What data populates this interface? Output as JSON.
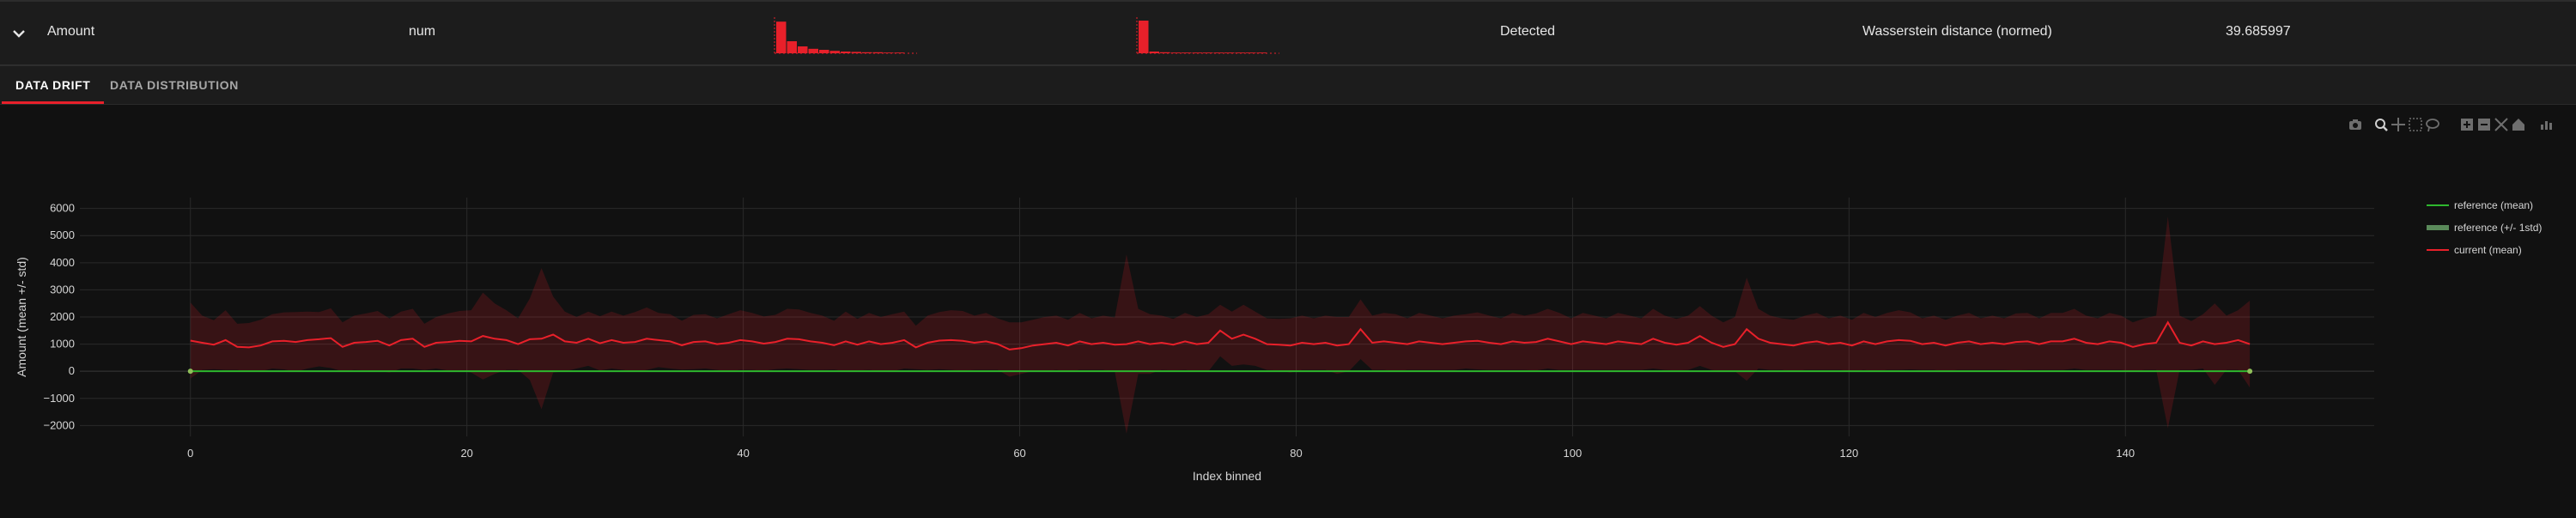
{
  "feature_row": {
    "name": "Amount",
    "type": "num",
    "drift_status": "Detected",
    "stattest": "Wasserstein distance (normed)",
    "score": "39.685997",
    "reference_hist": [
      0.92,
      0.35,
      0.2,
      0.13,
      0.1,
      0.07,
      0.05,
      0.04,
      0.03,
      0.03,
      0.02,
      0.02
    ],
    "current_hist": [
      0.95,
      0.05,
      0.03,
      0.02,
      0.02,
      0.02,
      0.02,
      0.02,
      0.02,
      0.02,
      0.02,
      0.02
    ],
    "hist_color": "#e8202a"
  },
  "tabs": [
    {
      "label": "DATA DRIFT",
      "active": true
    },
    {
      "label": "DATA DISTRIBUTION",
      "active": false
    }
  ],
  "modebar_icons": [
    "camera-icon",
    "zoom-icon",
    "pan-icon",
    "box-select-icon",
    "lasso-icon",
    "zoom-in-icon",
    "zoom-out-icon",
    "autoscale-icon",
    "reset-axes-icon",
    "plotly-logo-icon"
  ],
  "chart_data": {
    "type": "line",
    "xlabel": "Index binned",
    "ylabel": "Amount (mean +/- std)",
    "xlim": [
      -8,
      158
    ],
    "ylim": [
      -2400,
      6400
    ],
    "x_ticks": [
      0,
      20,
      40,
      60,
      80,
      100,
      120,
      140
    ],
    "y_ticks": [
      -2000,
      -1000,
      0,
      1000,
      2000,
      3000,
      4000,
      5000,
      6000
    ],
    "grid": true,
    "legend_position": "right",
    "series": [
      {
        "name": "reference (mean)",
        "color": "#2eb82e",
        "mean_x": [
          0,
          149
        ],
        "mean_y": [
          0,
          0
        ]
      },
      {
        "name": "reference (+/- 1std)",
        "color": "#5a8a5a"
      },
      {
        "name": "current (mean)",
        "color": "#e8202a",
        "band_color": "#e8202a"
      }
    ],
    "current_mean": [
      1130,
      1050,
      980,
      1150,
      900,
      880,
      950,
      1100,
      1120,
      1080,
      1150,
      1180,
      1220,
      900,
      1050,
      1080,
      1120,
      950,
      1150,
      1200,
      900,
      1050,
      1080,
      1120,
      1100,
      1300,
      1200,
      1150,
      1000,
      1180,
      1200,
      1350,
      1100,
      1050,
      1200,
      1030,
      1150,
      1050,
      1080,
      1200,
      1150,
      1100,
      960,
      1080,
      1100,
      1000,
      1050,
      1150,
      1100,
      1020,
      1080,
      1200,
      1180,
      1100,
      1050,
      960,
      1100,
      980,
      1100,
      1000,
      1050,
      1150,
      880,
      1050,
      1130,
      1150,
      1120,
      1050,
      1100,
      1000,
      800,
      850,
      950,
      1000,
      1050,
      950,
      1100,
      1000,
      1050,
      980,
      1000,
      1100,
      1000,
      1050,
      980,
      1100,
      1000,
      1050,
      1500,
      1200,
      1350,
      1200,
      1000,
      980,
      950,
      1050,
      1000,
      1050,
      950,
      1000,
      1550,
      1050,
      1100,
      1050,
      1000,
      1100,
      1050,
      1000,
      1050,
      1100,
      1120,
      1050,
      1000,
      1100,
      1050,
      1080,
      1200,
      1100,
      1000,
      1100,
      1050,
      1000,
      1100,
      1050,
      1000,
      1200,
      1050,
      980,
      1050,
      1300,
      1050,
      900,
      1000,
      1550,
      1200,
      1050,
      1000,
      950,
      1050,
      1100,
      1000,
      1050,
      950,
      1100,
      1000,
      1100,
      1150,
      1120,
      1000,
      1050,
      950,
      1050,
      1100,
      1000,
      1050,
      1000,
      1080,
      1100,
      1000,
      1100,
      1100,
      1200,
      1050,
      1000,
      1100,
      1050,
      900,
      1000,
      1050,
      1800,
      1050,
      950,
      1100,
      1000,
      1050,
      1150,
      1000
    ],
    "current_std": [
      1400,
      1000,
      900,
      1100,
      850,
      900,
      950,
      1000,
      1050,
      1100,
      1050,
      1000,
      1100,
      900,
      1000,
      1050,
      1100,
      1000,
      1050,
      1100,
      850,
      950,
      1050,
      1100,
      1150,
      1600,
      1300,
      1100,
      950,
      1500,
      2600,
      1400,
      1100,
      950,
      1000,
      1000,
      1050,
      1000,
      1100,
      1150,
      1000,
      1000,
      900,
      1000,
      1000,
      950,
      1050,
      1100,
      1050,
      1000,
      1000,
      1100,
      1100,
      1050,
      1000,
      900,
      1100,
      950,
      1050,
      1000,
      1050,
      1050,
      800,
      1000,
      1050,
      1100,
      1100,
      1000,
      1050,
      950,
      1000,
      950,
      950,
      1000,
      1000,
      950,
      1050,
      950,
      1000,
      1000,
      3300,
      1200,
      1100,
      1000,
      950,
      1050,
      1000,
      1050,
      950,
      1000,
      1100,
      1000,
      950,
      950,
      1000,
      1000,
      950,
      1000,
      1050,
      1000,
      1100,
      1000,
      1050,
      1050,
      950,
      1050,
      1000,
      950,
      1000,
      1000,
      1050,
      1000,
      950,
      1050,
      1000,
      1050,
      1100,
      1050,
      950,
      1050,
      1000,
      950,
      1050,
      1000,
      950,
      1100,
      1000,
      950,
      1000,
      1100,
      1000,
      900,
      1000,
      1900,
      1100,
      1000,
      950,
      950,
      1000,
      1050,
      950,
      1000,
      950,
      1050,
      1000,
      1050,
      1100,
      1050,
      950,
      1000,
      950,
      1000,
      1050,
      950,
      1000,
      950,
      1050,
      1050,
      950,
      1050,
      1050,
      1100,
      1000,
      950,
      1050,
      1000,
      900,
      950,
      1000,
      3900,
      1000,
      900,
      1000,
      1500,
      1000,
      1100,
      1600
    ]
  }
}
